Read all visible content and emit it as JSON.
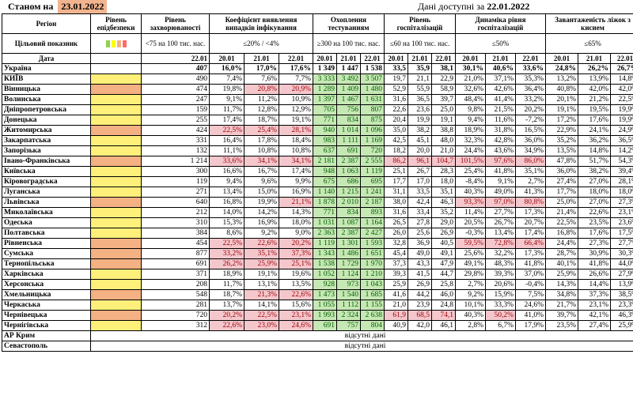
{
  "header": {
    "as_of_label": "Станом на",
    "as_of_date": "23.01.2022",
    "available_label": "Дані доступні за",
    "available_date": "22.01.2022"
  },
  "columns": {
    "region": "Регіон",
    "readiness": "Рівень епідбезпеки",
    "incidence": "Рівень захворюваності",
    "detection": "Коефіцієнт виявлення випадків інфікування",
    "testing": "Охоплення тестуванням",
    "hosp": "Рівень госпіталізацій",
    "hosp_dyn": "Динаміка рівня госпіталізацій",
    "oxygen": "Завантаженість ліжок з киснем"
  },
  "targets": {
    "label": "Цільовий показник",
    "incidence": "<75 на 100 тис. нас.",
    "detection": "≤20% / <4%",
    "testing": "≥300 на 100 тис. нас.",
    "hosp": "≤60 на 100 тис. нас.",
    "hosp_dyn": "≤50%",
    "oxygen": "≤65%"
  },
  "legend_colors": [
    "#92d050",
    "#ffff00",
    "#f4b183",
    "#ff6b6b"
  ],
  "dates": {
    "label": "Дата",
    "single": "22.01",
    "d1": "20.01",
    "d2": "21.01",
    "d3": "22.01"
  },
  "rows": [
    {
      "region": "Україна",
      "r": "",
      "inc": "407",
      "det": [
        "16,0%",
        "17,0%",
        "17,6%"
      ],
      "tst": [
        "1 349",
        "1 447",
        "1 538"
      ],
      "hos": [
        "33,5",
        "35,9",
        "38,1"
      ],
      "dyn": [
        "30,1%",
        "40,6%",
        "33,6%"
      ],
      "oxy": [
        "24,8%",
        "26,2%",
        "26,7%"
      ],
      "total": true
    },
    {
      "region": "КИЇВ",
      "r": "y",
      "inc": "490",
      "det": [
        "7,4%",
        "7,6%",
        "7,7%"
      ],
      "tst": [
        "3 333",
        "3 492",
        "3 507"
      ],
      "hos": [
        "19,7",
        "21,1",
        "22,9"
      ],
      "dyn": [
        "21,0%",
        "37,1%",
        "35,3%"
      ],
      "oxy": [
        "13,2%",
        "13,9%",
        "14,8%"
      ]
    },
    {
      "region": "Вінницька",
      "r": "o",
      "inc": "474",
      "det": [
        "19,8%",
        "20,8%",
        "20,9%"
      ],
      "tst": [
        "1 289",
        "1 409",
        "1 480"
      ],
      "hos": [
        "52,9",
        "55,9",
        "58,9"
      ],
      "dyn": [
        "32,6%",
        "42,6%",
        "36,4%"
      ],
      "oxy": [
        "40,8%",
        "42,0%",
        "42,0%"
      ],
      "detPink": [
        1,
        2
      ]
    },
    {
      "region": "Волинська",
      "r": "y",
      "inc": "247",
      "det": [
        "9,1%",
        "11,2%",
        "10,9%"
      ],
      "tst": [
        "1 397",
        "1 467",
        "1 631"
      ],
      "hos": [
        "31,6",
        "36,5",
        "39,7"
      ],
      "dyn": [
        "48,4%",
        "41,4%",
        "33,2%"
      ],
      "oxy": [
        "20,1%",
        "21,2%",
        "22,5%"
      ]
    },
    {
      "region": "Дніпропетровська",
      "r": "y",
      "inc": "159",
      "det": [
        "11,7%",
        "12,8%",
        "12,9%"
      ],
      "tst": [
        "705",
        "756",
        "807"
      ],
      "hos": [
        "22,6",
        "23,6",
        "25,0"
      ],
      "dyn": [
        "9,8%",
        "21,5%",
        "20,2%"
      ],
      "oxy": [
        "19,1%",
        "19,5%",
        "19,9%"
      ]
    },
    {
      "region": "Донецька",
      "r": "y",
      "inc": "255",
      "det": [
        "17,4%",
        "18,7%",
        "19,1%"
      ],
      "tst": [
        "771",
        "834",
        "875"
      ],
      "hos": [
        "20,4",
        "19,9",
        "19,1"
      ],
      "dyn": [
        "9,4%",
        "11,6%",
        "-7,2%"
      ],
      "oxy": [
        "17,2%",
        "17,6%",
        "19,9%"
      ]
    },
    {
      "region": "Житомирська",
      "r": "o",
      "inc": "424",
      "det": [
        "22,5%",
        "25,4%",
        "28,1%"
      ],
      "tst": [
        "940",
        "1 014",
        "1 096"
      ],
      "hos": [
        "35,0",
        "38,2",
        "38,8"
      ],
      "dyn": [
        "18,9%",
        "31,8%",
        "16,5%"
      ],
      "oxy": [
        "22,9%",
        "24,1%",
        "24,9%"
      ],
      "detPink": [
        0,
        1,
        2
      ]
    },
    {
      "region": "Закарпатська",
      "r": "y",
      "inc": "331",
      "det": [
        "16,4%",
        "17,8%",
        "18,4%"
      ],
      "tst": [
        "983",
        "1 111",
        "1 169"
      ],
      "hos": [
        "42,5",
        "45,1",
        "48,0"
      ],
      "dyn": [
        "32,3%",
        "42,8%",
        "36,0%"
      ],
      "oxy": [
        "35,2%",
        "36,2%",
        "36,5%"
      ]
    },
    {
      "region": "Запорізька",
      "r": "y",
      "inc": "132",
      "det": [
        "11,1%",
        "10,8%",
        "10,8%"
      ],
      "tst": [
        "637",
        "691",
        "720"
      ],
      "hos": [
        "18,2",
        "20,0",
        "21,0"
      ],
      "dyn": [
        "24,4%",
        "43,6%",
        "34,9%"
      ],
      "oxy": [
        "13,5%",
        "14,8%",
        "14,2%"
      ]
    },
    {
      "region": "Івано-Франківська",
      "r": "o",
      "inc": "1 214",
      "det": [
        "33,6%",
        "34,1%",
        "34,1%"
      ],
      "tst": [
        "2 181",
        "2 387",
        "2 555"
      ],
      "hos": [
        "86,2",
        "96,1",
        "104,7"
      ],
      "dyn": [
        "101,5%",
        "97,6%",
        "86,0%"
      ],
      "oxy": [
        "47,8%",
        "51,7%",
        "54,3%"
      ],
      "detPink": [
        0,
        1,
        2
      ],
      "hosPink": [
        0,
        1,
        2
      ],
      "dynPink": [
        0,
        1,
        2
      ]
    },
    {
      "region": "Київська",
      "r": "y",
      "inc": "300",
      "det": [
        "16,6%",
        "16,7%",
        "17,4%"
      ],
      "tst": [
        "948",
        "1 063",
        "1 119"
      ],
      "hos": [
        "25,1",
        "26,7",
        "28,3"
      ],
      "dyn": [
        "25,4%",
        "41,8%",
        "35,1%"
      ],
      "oxy": [
        "36,0%",
        "38,2%",
        "39,4%"
      ]
    },
    {
      "region": "Кіровоградська",
      "r": "y",
      "inc": "119",
      "det": [
        "9,4%",
        "9,6%",
        "9,9%"
      ],
      "tst": [
        "675",
        "686",
        "695"
      ],
      "hos": [
        "17,7",
        "17,0",
        "18,0"
      ],
      "dyn": [
        "-8,4%",
        "9,1%",
        "2,7%"
      ],
      "oxy": [
        "27,4%",
        "27,0%",
        "28,1%"
      ]
    },
    {
      "region": "Луганська",
      "r": "y",
      "inc": "271",
      "det": [
        "13,4%",
        "15,0%",
        "16,9%"
      ],
      "tst": [
        "1 140",
        "1 215",
        "1 241"
      ],
      "hos": [
        "31,1",
        "33,5",
        "35,1"
      ],
      "dyn": [
        "40,3%",
        "49,0%",
        "41,3%"
      ],
      "oxy": [
        "17,7%",
        "18,0%",
        "18,0%"
      ]
    },
    {
      "region": "Львівська",
      "r": "o",
      "inc": "640",
      "det": [
        "16,8%",
        "19,9%",
        "21,1%"
      ],
      "tst": [
        "1 878",
        "2 010",
        "2 187"
      ],
      "hos": [
        "38,0",
        "42,4",
        "46,3"
      ],
      "dyn": [
        "93,3%",
        "97,0%",
        "80,8%"
      ],
      "oxy": [
        "25,0%",
        "27,0%",
        "27,3%"
      ],
      "detPink": [
        2
      ],
      "dynPink": [
        0,
        1,
        2
      ]
    },
    {
      "region": "Миколаївська",
      "r": "y",
      "inc": "212",
      "det": [
        "14,0%",
        "14,2%",
        "14,3%"
      ],
      "tst": [
        "771",
        "834",
        "893"
      ],
      "hos": [
        "31,6",
        "33,4",
        "35,2"
      ],
      "dyn": [
        "11,4%",
        "27,7%",
        "17,3%"
      ],
      "oxy": [
        "21,4%",
        "22,6%",
        "23,1%"
      ]
    },
    {
      "region": "Одеська",
      "r": "y",
      "inc": "310",
      "det": [
        "15,3%",
        "16,9%",
        "18,0%"
      ],
      "tst": [
        "1 031",
        "1 087",
        "1 164"
      ],
      "hos": [
        "26,5",
        "27,8",
        "29,0"
      ],
      "dyn": [
        "20,5%",
        "26,7%",
        "20,7%"
      ],
      "oxy": [
        "22,5%",
        "23,5%",
        "23,6%"
      ]
    },
    {
      "region": "Полтавська",
      "r": "y",
      "inc": "384",
      "det": [
        "8,6%",
        "9,2%",
        "9,0%"
      ],
      "tst": [
        "2 363",
        "2 387",
        "2 427"
      ],
      "hos": [
        "26,0",
        "25,6",
        "26,9"
      ],
      "dyn": [
        "-0,3%",
        "13,4%",
        "17,4%"
      ],
      "oxy": [
        "16,8%",
        "17,6%",
        "17,5%"
      ]
    },
    {
      "region": "Рівненська",
      "r": "o",
      "inc": "454",
      "det": [
        "22,5%",
        "22,6%",
        "20,2%"
      ],
      "tst": [
        "1 119",
        "1 301",
        "1 593"
      ],
      "hos": [
        "32,8",
        "36,9",
        "40,5"
      ],
      "dyn": [
        "59,5%",
        "72,8%",
        "66,4%"
      ],
      "oxy": [
        "24,4%",
        "27,3%",
        "27,7%"
      ],
      "detPink": [
        0,
        1,
        2
      ],
      "dynPink": [
        0,
        1,
        2
      ]
    },
    {
      "region": "Сумська",
      "r": "o",
      "inc": "877",
      "det": [
        "33,2%",
        "35,1%",
        "37,3%"
      ],
      "tst": [
        "1 343",
        "1 486",
        "1 651"
      ],
      "hos": [
        "45,4",
        "49,0",
        "49,1"
      ],
      "dyn": [
        "25,6%",
        "32,2%",
        "17,3%"
      ],
      "oxy": [
        "28,7%",
        "30,9%",
        "30,3%"
      ],
      "detPink": [
        0,
        1,
        2
      ]
    },
    {
      "region": "Тернопільська",
      "r": "o",
      "inc": "691",
      "det": [
        "26,2%",
        "25,9%",
        "25,1%"
      ],
      "tst": [
        "1 538",
        "1 729",
        "1 970"
      ],
      "hos": [
        "37,3",
        "43,3",
        "47,9"
      ],
      "dyn": [
        "49,1%",
        "48,3%",
        "41,8%"
      ],
      "oxy": [
        "40,1%",
        "41,8%",
        "44,0%"
      ],
      "detPink": [
        0,
        1,
        2
      ]
    },
    {
      "region": "Харківська",
      "r": "y",
      "inc": "371",
      "det": [
        "18,9%",
        "19,1%",
        "19,6%"
      ],
      "tst": [
        "1 052",
        "1 124",
        "1 210"
      ],
      "hos": [
        "39,3",
        "41,5",
        "44,7"
      ],
      "dyn": [
        "29,8%",
        "39,3%",
        "37,0%"
      ],
      "oxy": [
        "25,9%",
        "26,6%",
        "27,9%"
      ]
    },
    {
      "region": "Херсонська",
      "r": "y",
      "inc": "208",
      "det": [
        "11,7%",
        "13,1%",
        "13,5%"
      ],
      "tst": [
        "928",
        "973",
        "1 043"
      ],
      "hos": [
        "25,9",
        "26,9",
        "25,8"
      ],
      "dyn": [
        "2,7%",
        "20,6%",
        "-0,4%"
      ],
      "oxy": [
        "14,3%",
        "14,4%",
        "13,9%"
      ]
    },
    {
      "region": "Хмельницька",
      "r": "o",
      "inc": "548",
      "det": [
        "18,7%",
        "21,3%",
        "22,6%"
      ],
      "tst": [
        "1 473",
        "1 540",
        "1 685"
      ],
      "hos": [
        "41,6",
        "44,2",
        "46,0"
      ],
      "dyn": [
        "9,2%",
        "15,9%",
        "7,5%"
      ],
      "oxy": [
        "34,8%",
        "37,3%",
        "38,5%"
      ],
      "detPink": [
        1,
        2
      ]
    },
    {
      "region": "Черкаська",
      "r": "y",
      "inc": "281",
      "det": [
        "13,7%",
        "14,1%",
        "15,6%"
      ],
      "tst": [
        "1 055",
        "1 112",
        "1 155"
      ],
      "hos": [
        "21,0",
        "23,9",
        "24,8"
      ],
      "dyn": [
        "10,1%",
        "33,3%",
        "24,6%"
      ],
      "oxy": [
        "21,7%",
        "23,1%",
        "23,3%"
      ]
    },
    {
      "region": "Чернівецька",
      "r": "o",
      "inc": "720",
      "det": [
        "20,2%",
        "22,5%",
        "23,1%"
      ],
      "tst": [
        "1 993",
        "2 324",
        "2 638"
      ],
      "hos": [
        "61,9",
        "68,5",
        "74,1"
      ],
      "dyn": [
        "40,3%",
        "50,2%",
        "41,0%"
      ],
      "oxy": [
        "39,7%",
        "42,1%",
        "46,3%"
      ],
      "detPink": [
        0,
        1,
        2
      ],
      "hosPink": [
        0,
        1,
        2
      ],
      "dynPink": [
        1
      ]
    },
    {
      "region": "Чернігівська",
      "r": "y",
      "inc": "312",
      "det": [
        "22,6%",
        "23,0%",
        "24,6%"
      ],
      "tst": [
        "691",
        "757",
        "804"
      ],
      "hos": [
        "40,9",
        "42,0",
        "46,1"
      ],
      "dyn": [
        "2,8%",
        "6,7%",
        "17,9%"
      ],
      "oxy": [
        "23,5%",
        "27,4%",
        "25,9%"
      ],
      "detPink": [
        0,
        1,
        2
      ]
    }
  ],
  "missing_rows": [
    {
      "region": "АР Крим",
      "text": "відсутні дані"
    },
    {
      "region": "Севастополь",
      "text": "відсутні дані"
    }
  ]
}
